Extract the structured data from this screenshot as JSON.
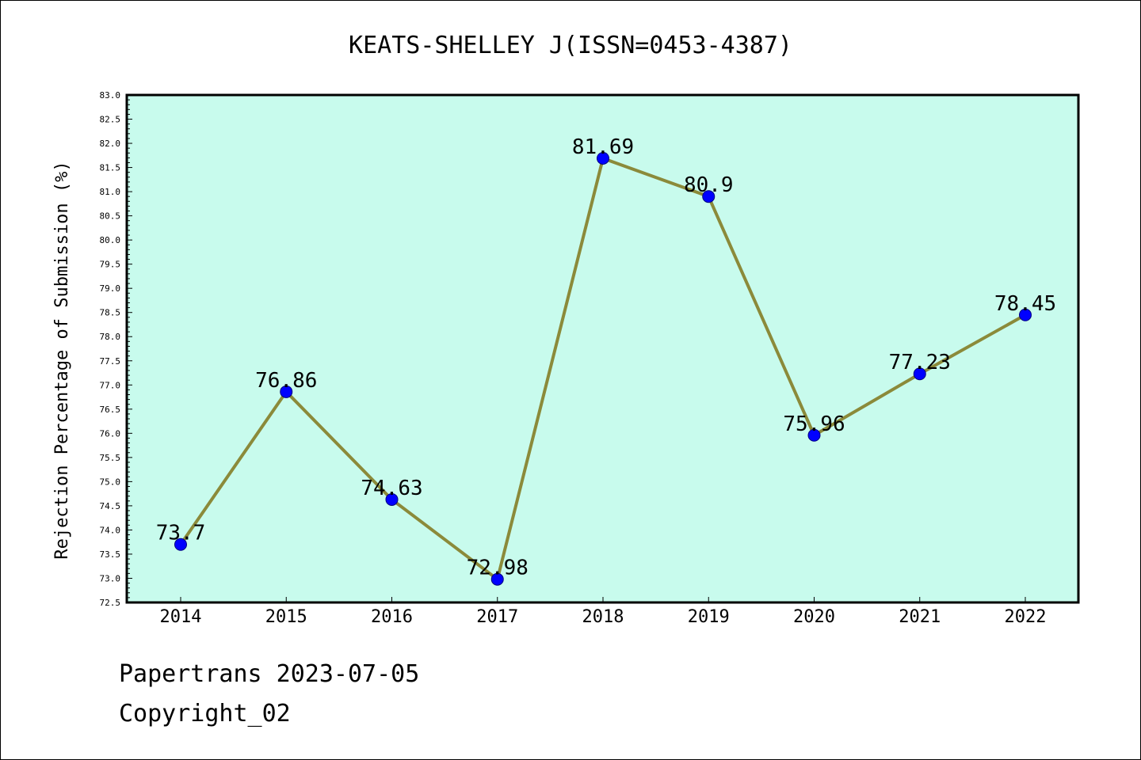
{
  "chart_data": {
    "type": "line",
    "title": "KEATS-SHELLEY J(ISSN=0453-4387)",
    "xlabel": "",
    "ylabel": "Rejection Percentage of Submission (%)",
    "categories": [
      "2014",
      "2015",
      "2016",
      "2017",
      "2018",
      "2019",
      "2020",
      "2021",
      "2022"
    ],
    "series": [
      {
        "values": [
          73.7,
          76.86,
          74.63,
          72.98,
          81.69,
          80.9,
          75.96,
          77.23,
          78.45
        ]
      }
    ],
    "data_labels": [
      "73.7",
      "76.86",
      "74.63",
      "72.98",
      "81.69",
      "80.9",
      "75.96",
      "77.23",
      "78.45"
    ],
    "ylim": [
      72.5,
      83.0
    ],
    "ytick_step": 0.5,
    "yticks": [
      "72.5",
      "73.0",
      "73.5",
      "74.0",
      "74.5",
      "75.0",
      "75.5",
      "76.0",
      "76.5",
      "77.0",
      "77.5",
      "78.0",
      "78.5",
      "79.0",
      "79.5",
      "80.0",
      "80.5",
      "81.0",
      "81.5",
      "82.0",
      "82.5",
      "83.0"
    ],
    "grid": false,
    "legend": "none",
    "colors": {
      "plot_background": "#c8fbed",
      "line": "#8b8a3a",
      "marker": "#0000ff",
      "marker_edge": "#000080"
    }
  },
  "footer": {
    "line1": "Papertrans 2023-07-05",
    "line2": "Copyright_02"
  }
}
